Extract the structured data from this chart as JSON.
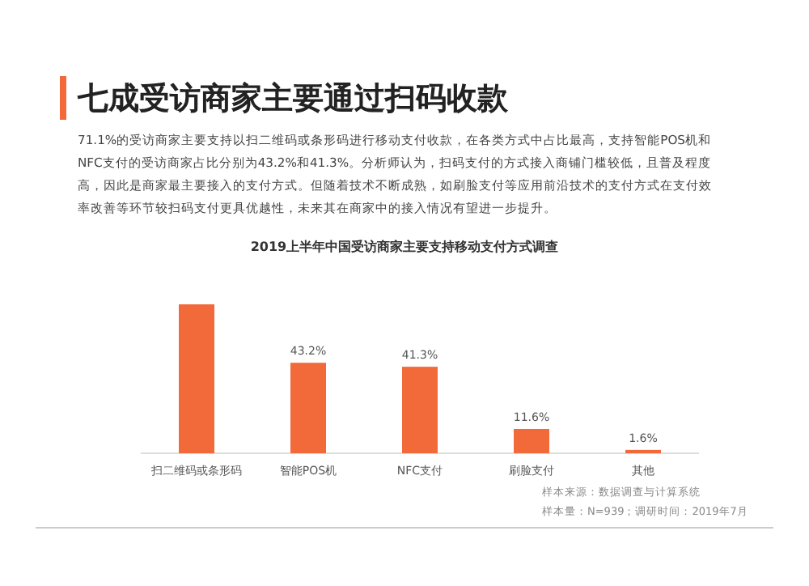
{
  "chart_data": {
    "type": "bar",
    "title": "七成受访商家主要通过扫码收款",
    "subtitle": "2019上半年中国受访商家主要支持移动支付方式调查",
    "categories": [
      "扫二维码或条形码",
      "智能POS机",
      "NFC支付",
      "刷脸支付",
      "其他"
    ],
    "values": [
      71.1,
      43.2,
      41.3,
      11.6,
      1.6
    ],
    "value_labels": [
      null,
      "43.2%",
      "41.3%",
      "11.6%",
      "1.6%"
    ],
    "color": "#f26a3a",
    "annotations": [
      "71.1%的受访商家主要支持以扫二维码或条形码进行移动支付收款，在各类方式中占比最高，支持智能POS机和NFC支付的受访商家占比分别为43.2%和41.3%。分析师认为，扫码支付的方式接入商铺门槛较低，且普及程度高，因此是商家最主要接入的支付方式。但随着技术不断成熟，如刷脸支付等应用前沿技术的支付方式在支付效率改善等环节较扫码支付更具优越性，未来其在商家中的接入情况有望进一步提升。",
      "样本来源：数据调查与计算系统",
      "样本量：N=939；调研时间：2019年7月"
    ]
  }
}
